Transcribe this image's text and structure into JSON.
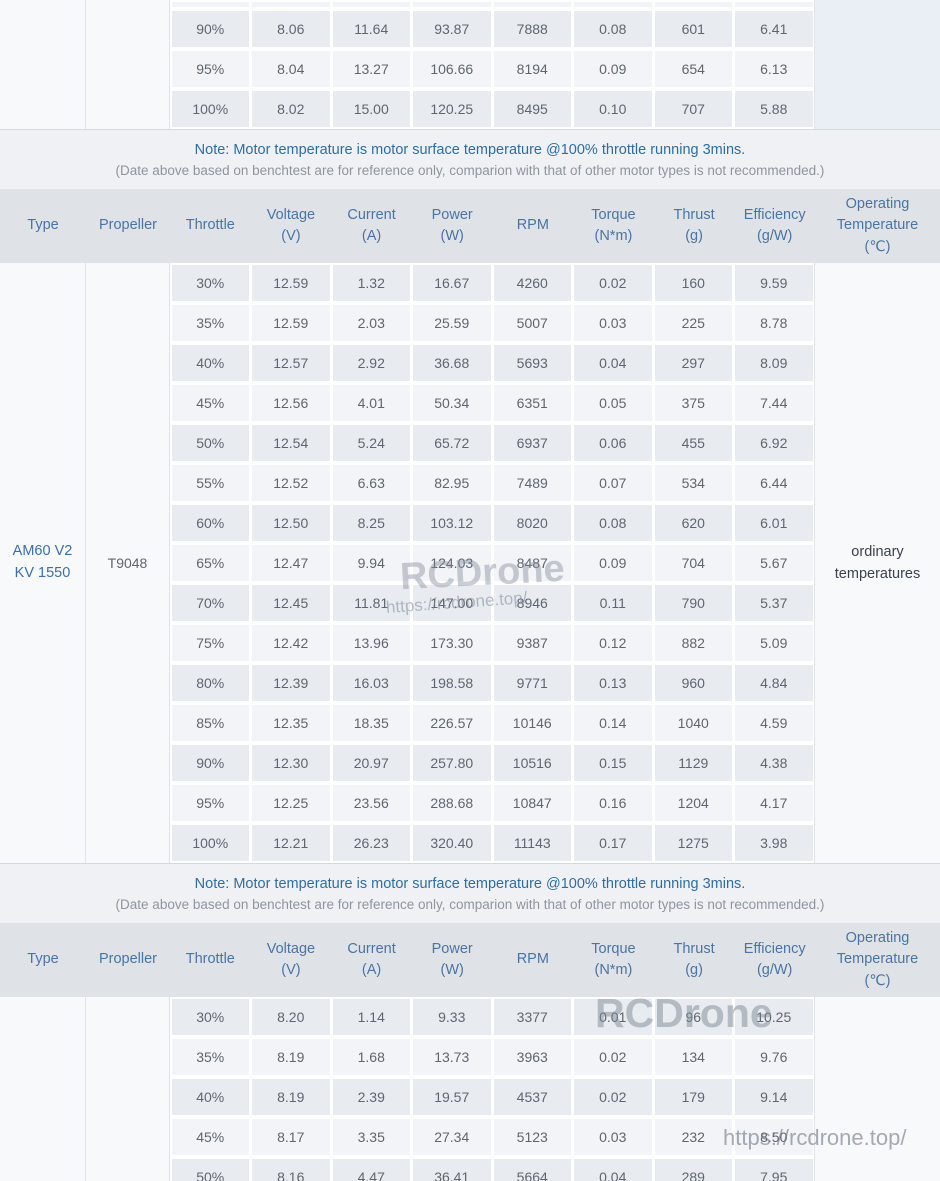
{
  "columns": [
    "Type",
    "Propeller",
    "Throttle",
    "Voltage\n(V)",
    "Current\n(A)",
    "Power\n(W)",
    "RPM",
    "Torque\n(N*m)",
    "Thrust\n(g)",
    "Efficiency\n(g/W)",
    "Operating\nTemperature\n(℃)"
  ],
  "note": {
    "line1": "Note: Motor temperature is motor surface temperature @100% throttle running 3mins.",
    "line2": "(Date above based on benchtest are for reference only, comparion with that of other motor types is not recommended.)"
  },
  "tables": {
    "top": {
      "rows": [
        [
          "90%",
          "8.06",
          "11.64",
          "93.87",
          "7888",
          "0.08",
          "601",
          "6.41"
        ],
        [
          "95%",
          "8.04",
          "13.27",
          "106.66",
          "8194",
          "0.09",
          "654",
          "6.13"
        ],
        [
          "100%",
          "8.02",
          "15.00",
          "120.25",
          "8495",
          "0.10",
          "707",
          "5.88"
        ]
      ]
    },
    "middle": {
      "type": "AM60 V2\nKV 1550",
      "propeller": "T9048",
      "operating_temperature": "ordinary\ntemperatures",
      "rows": [
        [
          "30%",
          "12.59",
          "1.32",
          "16.67",
          "4260",
          "0.02",
          "160",
          "9.59"
        ],
        [
          "35%",
          "12.59",
          "2.03",
          "25.59",
          "5007",
          "0.03",
          "225",
          "8.78"
        ],
        [
          "40%",
          "12.57",
          "2.92",
          "36.68",
          "5693",
          "0.04",
          "297",
          "8.09"
        ],
        [
          "45%",
          "12.56",
          "4.01",
          "50.34",
          "6351",
          "0.05",
          "375",
          "7.44"
        ],
        [
          "50%",
          "12.54",
          "5.24",
          "65.72",
          "6937",
          "0.06",
          "455",
          "6.92"
        ],
        [
          "55%",
          "12.52",
          "6.63",
          "82.95",
          "7489",
          "0.07",
          "534",
          "6.44"
        ],
        [
          "60%",
          "12.50",
          "8.25",
          "103.12",
          "8020",
          "0.08",
          "620",
          "6.01"
        ],
        [
          "65%",
          "12.47",
          "9.94",
          "124.03",
          "8487",
          "0.09",
          "704",
          "5.67"
        ],
        [
          "70%",
          "12.45",
          "11.81",
          "147.00",
          "8946",
          "0.11",
          "790",
          "5.37"
        ],
        [
          "75%",
          "12.42",
          "13.96",
          "173.30",
          "9387",
          "0.12",
          "882",
          "5.09"
        ],
        [
          "80%",
          "12.39",
          "16.03",
          "198.58",
          "9771",
          "0.13",
          "960",
          "4.84"
        ],
        [
          "85%",
          "12.35",
          "18.35",
          "226.57",
          "10146",
          "0.14",
          "1040",
          "4.59"
        ],
        [
          "90%",
          "12.30",
          "20.97",
          "257.80",
          "10516",
          "0.15",
          "1129",
          "4.38"
        ],
        [
          "95%",
          "12.25",
          "23.56",
          "288.68",
          "10847",
          "0.16",
          "1204",
          "4.17"
        ],
        [
          "100%",
          "12.21",
          "26.23",
          "320.40",
          "11143",
          "0.17",
          "1275",
          "3.98"
        ]
      ]
    },
    "bottom": {
      "rows": [
        [
          "30%",
          "8.20",
          "1.14",
          "9.33",
          "3377",
          "0.01",
          "96",
          "10.25"
        ],
        [
          "35%",
          "8.19",
          "1.68",
          "13.73",
          "3963",
          "0.02",
          "134",
          "9.76"
        ],
        [
          "40%",
          "8.19",
          "2.39",
          "19.57",
          "4537",
          "0.02",
          "179",
          "9.14"
        ],
        [
          "45%",
          "8.17",
          "3.35",
          "27.34",
          "5123",
          "0.03",
          "232",
          "8.50"
        ],
        [
          "50%",
          "8.16",
          "4.47",
          "36.41",
          "5664",
          "0.04",
          "289",
          "7.95"
        ]
      ]
    }
  },
  "watermarks": {
    "brand1": "RCDrone",
    "url1": "https://rcdrone.top/",
    "brand2": "RCDrone",
    "url2": "https://rcdrone.top/"
  },
  "colors": {
    "header_bg": "#dfe3e7",
    "header_text": "#4a74a3",
    "row_dark": "#e8ecf1",
    "row_light": "#f2f4f8",
    "side_column_bg": "#f7f9fb",
    "note_blue": "#2e6da4",
    "note_gray": "#8f959e",
    "data_text": "#60666e",
    "type_blue": "#3e6ea9",
    "page_bg": "#eff1f4"
  }
}
